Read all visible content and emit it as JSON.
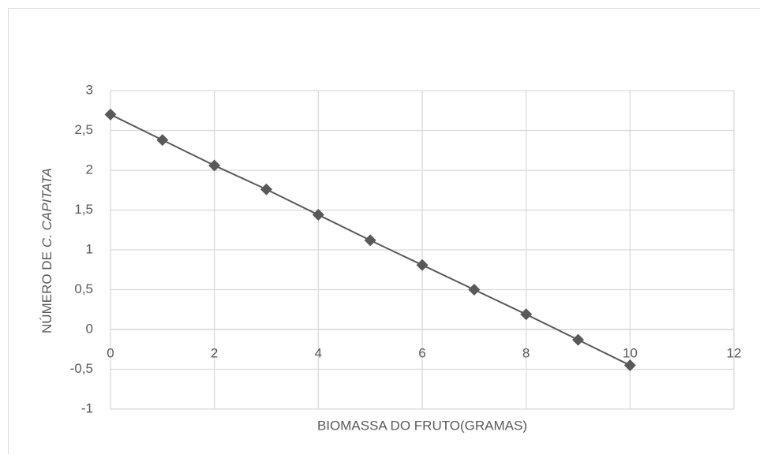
{
  "chart_data": {
    "type": "line",
    "ylabel": {
      "text": "NÚMERO DE",
      "italic": "C. CAPITATA"
    },
    "xlabel": "BIOMASSA DO FRUTO(GRAMAS)",
    "x": [
      0,
      1,
      2,
      3,
      4,
      5,
      6,
      7,
      8,
      9,
      10
    ],
    "values": [
      2.7,
      2.38,
      2.06,
      1.76,
      1.44,
      1.12,
      0.81,
      0.5,
      0.19,
      -0.13,
      -0.45
    ],
    "color": "#595959",
    "marker": "diamond",
    "xlim": [
      0,
      12
    ],
    "xticks": [
      0,
      2,
      4,
      6,
      8,
      10,
      12
    ],
    "ylim": [
      -1,
      3
    ],
    "yticks": [
      -1,
      {
        "value": -0.5,
        "label": "-0,5"
      },
      0,
      {
        "value": 0.5,
        "label": "0,5"
      },
      1,
      {
        "value": 1.5,
        "label": "1,5"
      },
      2,
      {
        "value": 2.5,
        "label": "2,5"
      },
      3
    ],
    "grid": true
  }
}
